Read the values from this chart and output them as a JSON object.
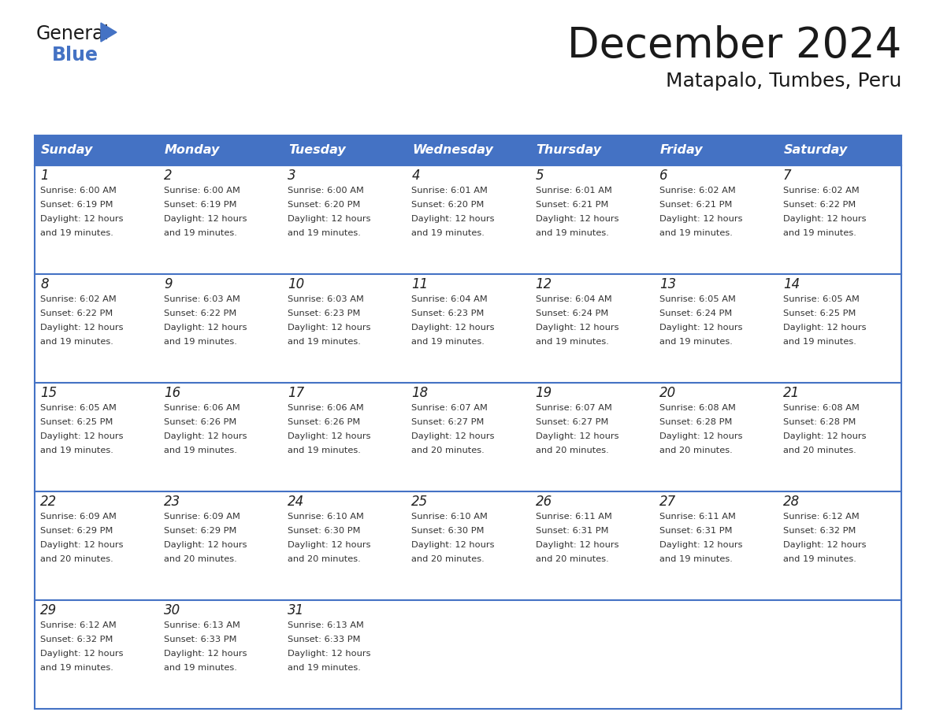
{
  "title": "December 2024",
  "subtitle": "Matapalo, Tumbes, Peru",
  "header_color": "#4472C4",
  "header_text_color": "#FFFFFF",
  "background_color": "#FFFFFF",
  "border_color": "#4472C4",
  "day_names": [
    "Sunday",
    "Monday",
    "Tuesday",
    "Wednesday",
    "Thursday",
    "Friday",
    "Saturday"
  ],
  "weeks": [
    [
      {
        "day": "1",
        "sunrise": "6:00 AM",
        "sunset": "6:19 PM",
        "daylight_hours": "12 hours",
        "daylight_mins": "and 19 minutes."
      },
      {
        "day": "2",
        "sunrise": "6:00 AM",
        "sunset": "6:19 PM",
        "daylight_hours": "12 hours",
        "daylight_mins": "and 19 minutes."
      },
      {
        "day": "3",
        "sunrise": "6:00 AM",
        "sunset": "6:20 PM",
        "daylight_hours": "12 hours",
        "daylight_mins": "and 19 minutes."
      },
      {
        "day": "4",
        "sunrise": "6:01 AM",
        "sunset": "6:20 PM",
        "daylight_hours": "12 hours",
        "daylight_mins": "and 19 minutes."
      },
      {
        "day": "5",
        "sunrise": "6:01 AM",
        "sunset": "6:21 PM",
        "daylight_hours": "12 hours",
        "daylight_mins": "and 19 minutes."
      },
      {
        "day": "6",
        "sunrise": "6:02 AM",
        "sunset": "6:21 PM",
        "daylight_hours": "12 hours",
        "daylight_mins": "and 19 minutes."
      },
      {
        "day": "7",
        "sunrise": "6:02 AM",
        "sunset": "6:22 PM",
        "daylight_hours": "12 hours",
        "daylight_mins": "and 19 minutes."
      }
    ],
    [
      {
        "day": "8",
        "sunrise": "6:02 AM",
        "sunset": "6:22 PM",
        "daylight_hours": "12 hours",
        "daylight_mins": "and 19 minutes."
      },
      {
        "day": "9",
        "sunrise": "6:03 AM",
        "sunset": "6:22 PM",
        "daylight_hours": "12 hours",
        "daylight_mins": "and 19 minutes."
      },
      {
        "day": "10",
        "sunrise": "6:03 AM",
        "sunset": "6:23 PM",
        "daylight_hours": "12 hours",
        "daylight_mins": "and 19 minutes."
      },
      {
        "day": "11",
        "sunrise": "6:04 AM",
        "sunset": "6:23 PM",
        "daylight_hours": "12 hours",
        "daylight_mins": "and 19 minutes."
      },
      {
        "day": "12",
        "sunrise": "6:04 AM",
        "sunset": "6:24 PM",
        "daylight_hours": "12 hours",
        "daylight_mins": "and 19 minutes."
      },
      {
        "day": "13",
        "sunrise": "6:05 AM",
        "sunset": "6:24 PM",
        "daylight_hours": "12 hours",
        "daylight_mins": "and 19 minutes."
      },
      {
        "day": "14",
        "sunrise": "6:05 AM",
        "sunset": "6:25 PM",
        "daylight_hours": "12 hours",
        "daylight_mins": "and 19 minutes."
      }
    ],
    [
      {
        "day": "15",
        "sunrise": "6:05 AM",
        "sunset": "6:25 PM",
        "daylight_hours": "12 hours",
        "daylight_mins": "and 19 minutes."
      },
      {
        "day": "16",
        "sunrise": "6:06 AM",
        "sunset": "6:26 PM",
        "daylight_hours": "12 hours",
        "daylight_mins": "and 19 minutes."
      },
      {
        "day": "17",
        "sunrise": "6:06 AM",
        "sunset": "6:26 PM",
        "daylight_hours": "12 hours",
        "daylight_mins": "and 19 minutes."
      },
      {
        "day": "18",
        "sunrise": "6:07 AM",
        "sunset": "6:27 PM",
        "daylight_hours": "12 hours",
        "daylight_mins": "and 20 minutes."
      },
      {
        "day": "19",
        "sunrise": "6:07 AM",
        "sunset": "6:27 PM",
        "daylight_hours": "12 hours",
        "daylight_mins": "and 20 minutes."
      },
      {
        "day": "20",
        "sunrise": "6:08 AM",
        "sunset": "6:28 PM",
        "daylight_hours": "12 hours",
        "daylight_mins": "and 20 minutes."
      },
      {
        "day": "21",
        "sunrise": "6:08 AM",
        "sunset": "6:28 PM",
        "daylight_hours": "12 hours",
        "daylight_mins": "and 20 minutes."
      }
    ],
    [
      {
        "day": "22",
        "sunrise": "6:09 AM",
        "sunset": "6:29 PM",
        "daylight_hours": "12 hours",
        "daylight_mins": "and 20 minutes."
      },
      {
        "day": "23",
        "sunrise": "6:09 AM",
        "sunset": "6:29 PM",
        "daylight_hours": "12 hours",
        "daylight_mins": "and 20 minutes."
      },
      {
        "day": "24",
        "sunrise": "6:10 AM",
        "sunset": "6:30 PM",
        "daylight_hours": "12 hours",
        "daylight_mins": "and 20 minutes."
      },
      {
        "day": "25",
        "sunrise": "6:10 AM",
        "sunset": "6:30 PM",
        "daylight_hours": "12 hours",
        "daylight_mins": "and 20 minutes."
      },
      {
        "day": "26",
        "sunrise": "6:11 AM",
        "sunset": "6:31 PM",
        "daylight_hours": "12 hours",
        "daylight_mins": "and 20 minutes."
      },
      {
        "day": "27",
        "sunrise": "6:11 AM",
        "sunset": "6:31 PM",
        "daylight_hours": "12 hours",
        "daylight_mins": "and 19 minutes."
      },
      {
        "day": "28",
        "sunrise": "6:12 AM",
        "sunset": "6:32 PM",
        "daylight_hours": "12 hours",
        "daylight_mins": "and 19 minutes."
      }
    ],
    [
      {
        "day": "29",
        "sunrise": "6:12 AM",
        "sunset": "6:32 PM",
        "daylight_hours": "12 hours",
        "daylight_mins": "and 19 minutes."
      },
      {
        "day": "30",
        "sunrise": "6:13 AM",
        "sunset": "6:33 PM",
        "daylight_hours": "12 hours",
        "daylight_mins": "and 19 minutes."
      },
      {
        "day": "31",
        "sunrise": "6:13 AM",
        "sunset": "6:33 PM",
        "daylight_hours": "12 hours",
        "daylight_mins": "and 19 minutes."
      },
      null,
      null,
      null,
      null
    ]
  ]
}
